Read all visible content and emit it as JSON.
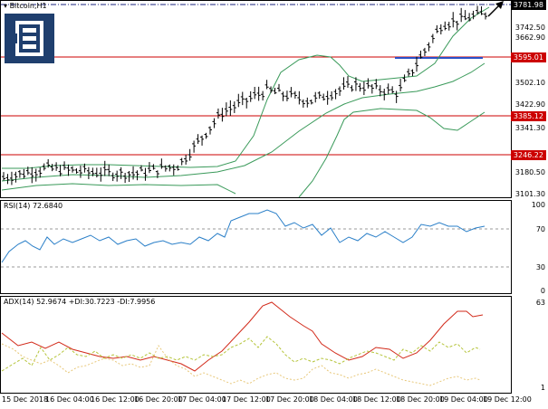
{
  "chart_header": {
    "symbol": "Bitcoin,H1"
  },
  "price_axis": {
    "ticks": [
      "3742.50",
      "3662.90",
      "3502.10",
      "3422.90",
      "3341.30",
      "3180.50",
      "3101.30"
    ],
    "tag_top": "3781.98",
    "tag_level_1": "3595.01",
    "tag_level_2": "3385.12",
    "tag_level_3": "3246.22"
  },
  "rsi": {
    "label": "RSI(14) 72.6840",
    "ticks": [
      "100",
      "70",
      "30",
      "0"
    ]
  },
  "adx": {
    "label": "ADX(14) 52.9674 +DI:30.7223 -DI:7.9956",
    "ticks": [
      "63",
      "1"
    ]
  },
  "time_axis": [
    "15 Dec 2018",
    "16 Dec 04:00",
    "16 Dec 12:00",
    "16 Dec 20:00",
    "17 Dec 04:00",
    "17 Dec 12:00",
    "17 Dec 20:00",
    "18 Dec 04:00",
    "18 Dec 12:00",
    "18 Dec 20:00",
    "19 Dec 04:00",
    "19 Dec 12:00"
  ],
  "colors": {
    "level_line": "#cc0000",
    "bollinger": "#3a9a5a",
    "rsi": "#2a7fc8",
    "adx": "#d22a1a",
    "plus_di": "#b5c43a",
    "minus_di": "#e8c87a",
    "blue_marker": "#2b4fc7"
  },
  "chart_data": {
    "type": "line",
    "title": "Bitcoin,H1",
    "x": [
      "15 Dec 2018",
      "16 Dec 04:00",
      "16 Dec 12:00",
      "16 Dec 20:00",
      "17 Dec 04:00",
      "17 Dec 12:00",
      "17 Dec 20:00",
      "18 Dec 04:00",
      "18 Dec 12:00",
      "18 Dec 20:00",
      "19 Dec 04:00",
      "19 Dec 12:00"
    ],
    "series": [
      {
        "name": "Bitcoin,H1",
        "values": [
          3160,
          3195,
          3180,
          3175,
          3205,
          3400,
          3480,
          3440,
          3500,
          3470,
          3720,
          3760
        ]
      }
    ],
    "ylim": [
      3101.3,
      3781.98
    ],
    "levels": [
      3595.01,
      3385.12,
      3246.22
    ],
    "rsi": {
      "name": "RSI(14)",
      "value": 72.684,
      "ylim": [
        0,
        100
      ],
      "levels": [
        70,
        30
      ]
    },
    "adx": {
      "name": "ADX(14)",
      "adx": 52.9674,
      "plus_di": 30.7223,
      "minus_di": 7.9956
    }
  }
}
